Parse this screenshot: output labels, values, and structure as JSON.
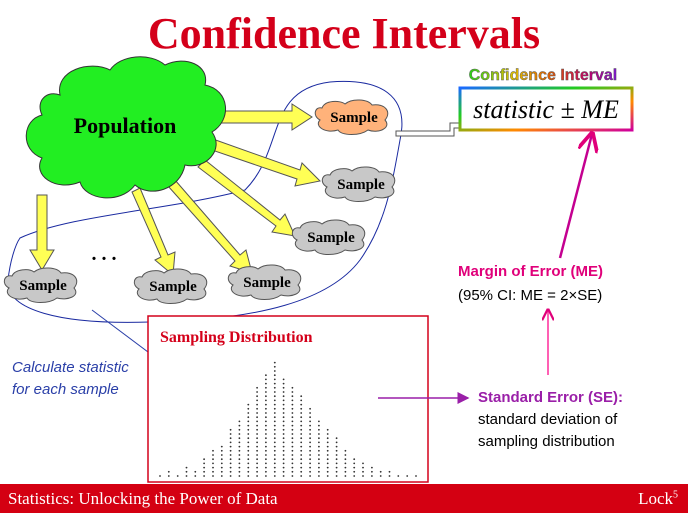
{
  "title": "Confidence Intervals",
  "population_label": "Population",
  "sample_label": "Sample",
  "ellipsis": ". . .",
  "ci_heading": "Confidence Interval",
  "ci_formula": "statistic ± ME",
  "me_heading": "Margin of Error (ME)",
  "me_detail": "(95% CI: ME = 2×SE)",
  "calc_line1": "Calculate statistic",
  "calc_line2": "for each sample",
  "sampling_dist_title": "Sampling Distribution",
  "se_heading": "Standard Error (SE):",
  "se_line1": "standard deviation of",
  "se_line2": "sampling distribution",
  "footer_left": "Statistics: Unlocking the Power of Data",
  "footer_right": "Lock",
  "footer_sup": "5",
  "colors": {
    "title_red": "#d4001a",
    "cloud_green": "#22ee22",
    "arrow_yellow": "#ffff55",
    "sample_gray": "#c8c8c8",
    "sample_orange": "#ffb27a",
    "magenta": "#e0007a",
    "purple": "#9a1fa8",
    "blue_text": "#2a3fa8"
  },
  "dotplot_heights": [
    1,
    2,
    1,
    3,
    2,
    5,
    7,
    8,
    12,
    14,
    18,
    22,
    25,
    28,
    24,
    22,
    20,
    17,
    14,
    12,
    10,
    7,
    5,
    4,
    3,
    2,
    2,
    1,
    1,
    1
  ]
}
